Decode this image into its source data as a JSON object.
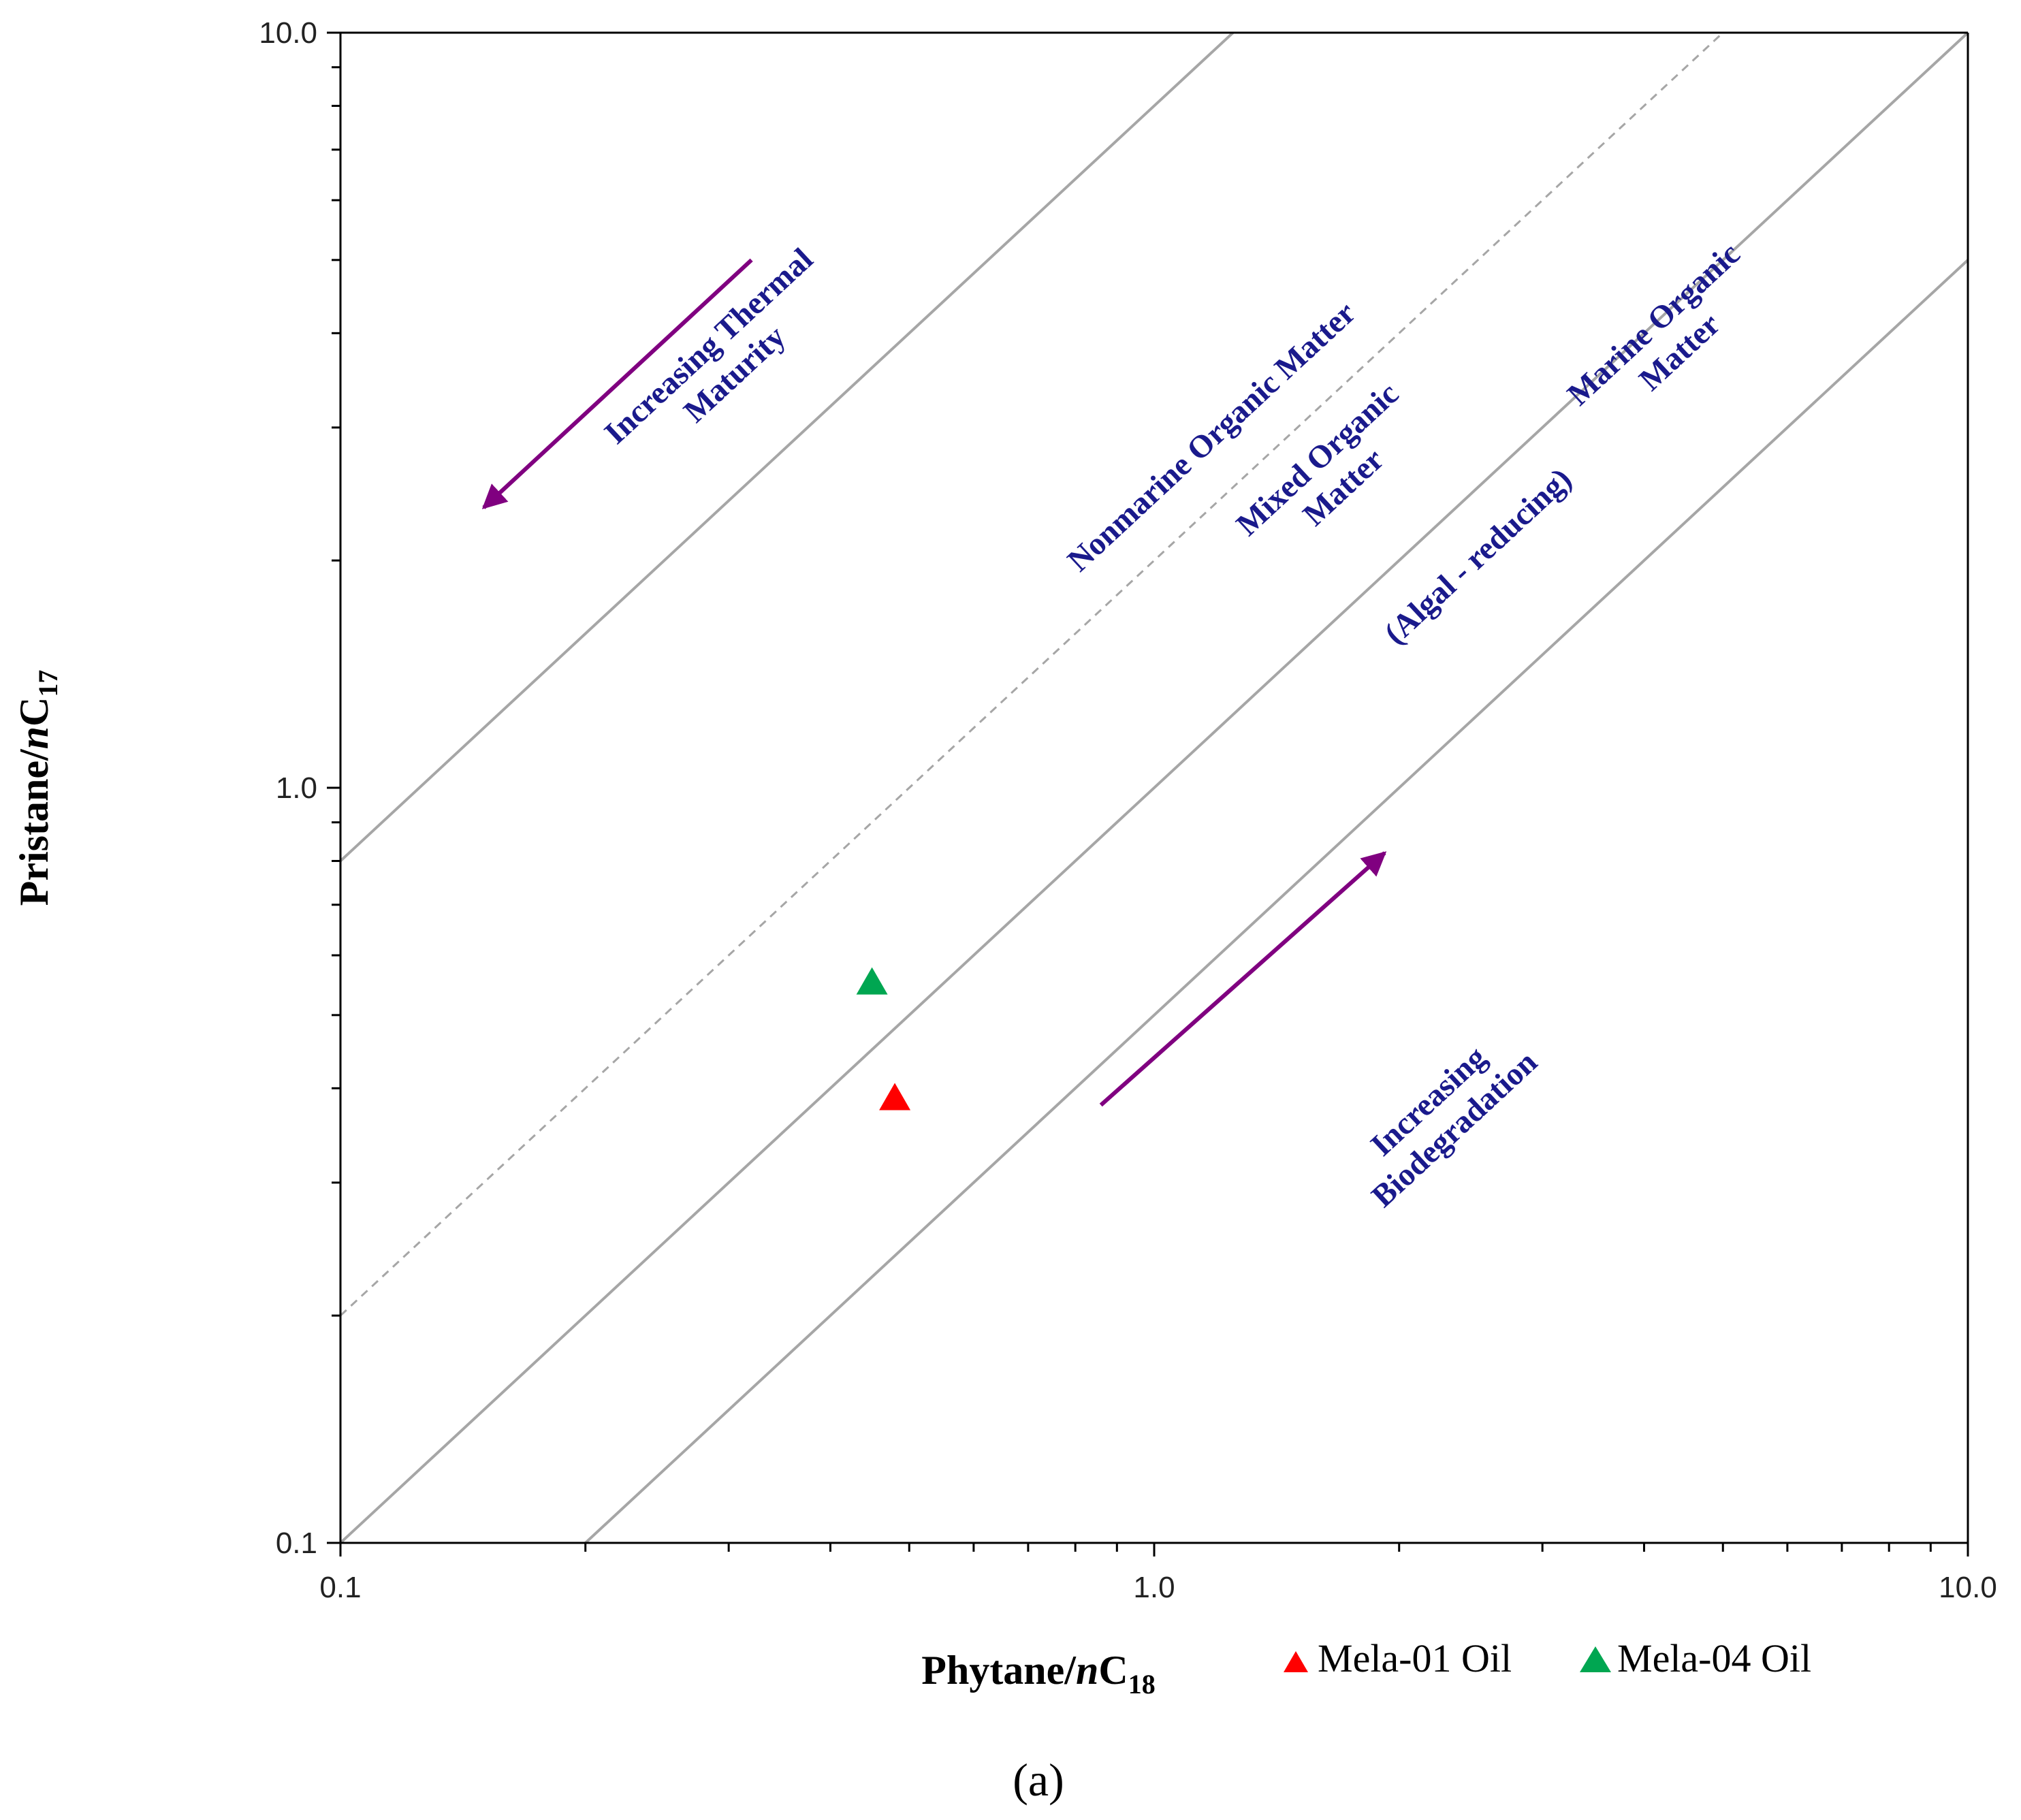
{
  "chart_data": {
    "type": "scatter",
    "x_scale": "log",
    "y_scale": "log",
    "xlim": [
      0.1,
      10.0
    ],
    "ylim": [
      0.1,
      10.0
    ],
    "x_ticks": [
      {
        "value": 0.1,
        "label": "0.1"
      },
      {
        "value": 1.0,
        "label": "1.0"
      },
      {
        "value": 10.0,
        "label": "10.0"
      }
    ],
    "y_ticks": [
      {
        "value": 0.1,
        "label": "0.1"
      },
      {
        "value": 1.0,
        "label": "1.0"
      },
      {
        "value": 10.0,
        "label": "10.0"
      }
    ],
    "xlabel": {
      "main": "Phytane/",
      "italic": "n",
      "element": "C",
      "subscript": "18"
    },
    "ylabel": {
      "main": "Pristane/",
      "italic": "n",
      "element": "C",
      "subscript": "17"
    },
    "caption": "(a)",
    "grid": false,
    "legend_position": "bottom-right",
    "series": [
      {
        "name": "Mela-01 Oil",
        "color": "#ff0000",
        "marker": "triangle",
        "points": [
          {
            "x": 0.48,
            "y": 0.39
          }
        ]
      },
      {
        "name": "Mela-04 Oil",
        "color": "#00a651",
        "marker": "triangle",
        "points": [
          {
            "x": 0.45,
            "y": 0.555
          }
        ]
      }
    ],
    "boundary_lines": [
      {
        "name": "nonmarine-boundary",
        "ratio": 8.0,
        "dashed": false,
        "color": "#a6a6a6"
      },
      {
        "name": "mixed-dashed-boundary",
        "ratio": 2.0,
        "dashed": true,
        "color": "#a6a6a6"
      },
      {
        "name": "marine-upper-boundary",
        "ratio": 1.0,
        "dashed": false,
        "color": "#a6a6a6"
      },
      {
        "name": "marine-lower-boundary",
        "ratio": 0.5,
        "dashed": false,
        "color": "#a6a6a6"
      }
    ],
    "arrows": [
      {
        "name": "thermal-maturity-arrow",
        "from": {
          "x": 0.32,
          "y": 5.0
        },
        "to": {
          "x": 0.15,
          "y": 2.35
        },
        "color": "#800080"
      },
      {
        "name": "biodegradation-arrow",
        "from": {
          "x": 0.86,
          "y": 0.38
        },
        "to": {
          "x": 1.92,
          "y": 0.82
        },
        "color": "#800080"
      }
    ],
    "annotations": [
      {
        "name": "thermal-maturity-label",
        "lines": [
          "Increasing Thermal",
          "Maturity"
        ],
        "x": 0.3,
        "y": 3.6
      },
      {
        "name": "nonmarine-label",
        "lines": [
          "Nonmarine Organic Matter"
        ],
        "x": 1.2,
        "y": 2.85
      },
      {
        "name": "mixed-label",
        "lines": [
          "Mixed Organic",
          "Matter"
        ],
        "x": 1.68,
        "y": 2.55
      },
      {
        "name": "marine-label",
        "lines": [
          "Marine Organic",
          "Matter"
        ],
        "x": 4.35,
        "y": 3.85
      },
      {
        "name": "algal-label",
        "lines": [
          "(Algal - reducing)"
        ],
        "x": 2.55,
        "y": 1.98
      },
      {
        "name": "biodegradation-label",
        "lines": [
          "Increasing",
          "Biodegradation"
        ],
        "x": 2.3,
        "y": 0.36
      }
    ],
    "colors": {
      "label_text": "#1a1a8c",
      "axis": "#000000",
      "boundary": "#a6a6a6",
      "arrow": "#800080"
    }
  }
}
